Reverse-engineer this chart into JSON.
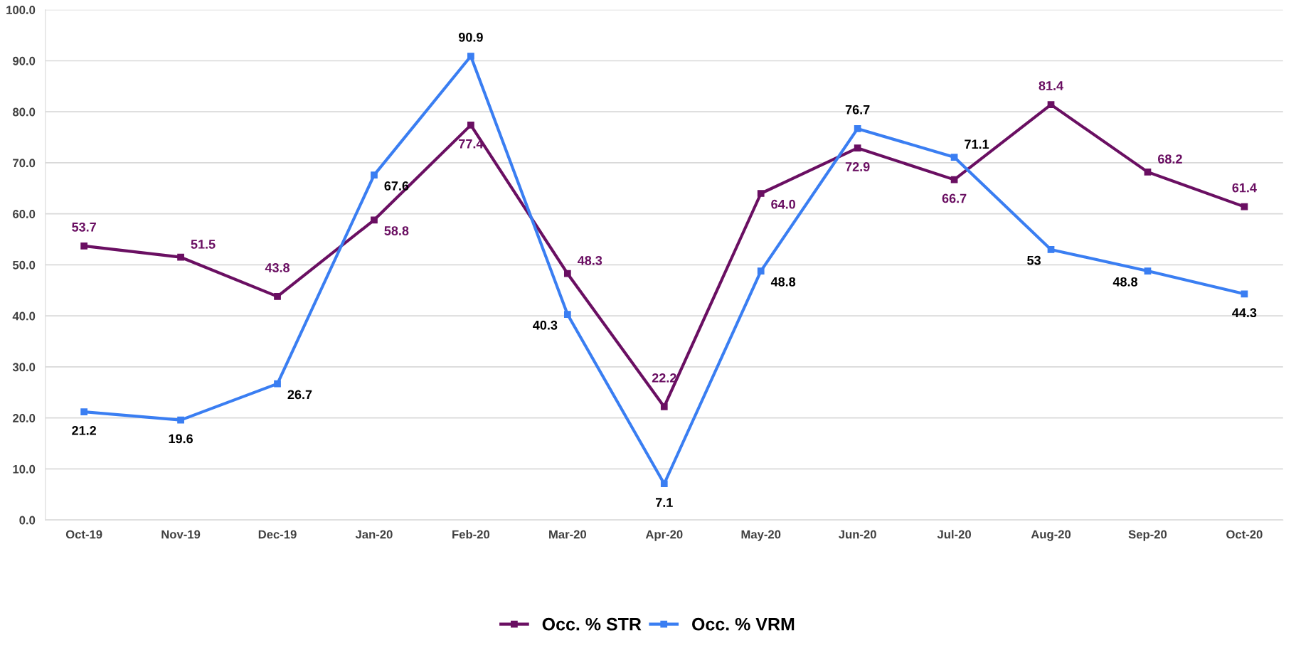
{
  "chart_data": {
    "type": "line",
    "categories": [
      "Oct-19",
      "Nov-19",
      "Dec-19",
      "Jan-20",
      "Feb-20",
      "Mar-20",
      "Apr-20",
      "May-20",
      "Jun-20",
      "Jul-20",
      "Aug-20",
      "Sep-20",
      "Oct-20"
    ],
    "series": [
      {
        "name": "Occ. % STR",
        "color": "#6a0f62",
        "values": [
          53.7,
          51.5,
          43.8,
          58.8,
          77.4,
          48.3,
          22.2,
          64.0,
          72.9,
          66.7,
          81.4,
          68.2,
          61.4
        ],
        "value_labels": [
          "53.7",
          "51.5",
          "43.8",
          "58.8",
          "77.4",
          "48.3",
          "22.2",
          "64.0",
          "72.9",
          "66.7",
          "81.4",
          "68.2",
          "61.4"
        ]
      },
      {
        "name": "Occ. % VRM",
        "color": "#3a7ef2",
        "values": [
          21.2,
          19.6,
          26.7,
          67.6,
          90.9,
          40.3,
          7.1,
          48.8,
          76.7,
          71.1,
          53,
          48.8,
          44.3
        ],
        "value_labels": [
          "21.2",
          "19.6",
          "26.7",
          "67.6",
          "90.9",
          "40.3",
          "7.1",
          "48.8",
          "76.7",
          "71.1",
          "53",
          "48.8",
          "44.3"
        ]
      }
    ],
    "ylim": [
      0,
      100
    ],
    "yticks": [
      {
        "value": 0,
        "label": "0.0"
      },
      {
        "value": 10,
        "label": "10.0"
      },
      {
        "value": 20,
        "label": "20.0"
      },
      {
        "value": 30,
        "label": "30.0"
      },
      {
        "value": 40,
        "label": "40.0"
      },
      {
        "value": 50,
        "label": "50.0"
      },
      {
        "value": 60,
        "label": "60.0"
      },
      {
        "value": 70,
        "label": "70.0"
      },
      {
        "value": 80,
        "label": "80.0"
      },
      {
        "value": 90,
        "label": "90.0"
      },
      {
        "value": 100,
        "label": "100.0"
      }
    ],
    "grid": "y",
    "legend": "bottom",
    "marker": "square",
    "line_style": "solid"
  }
}
